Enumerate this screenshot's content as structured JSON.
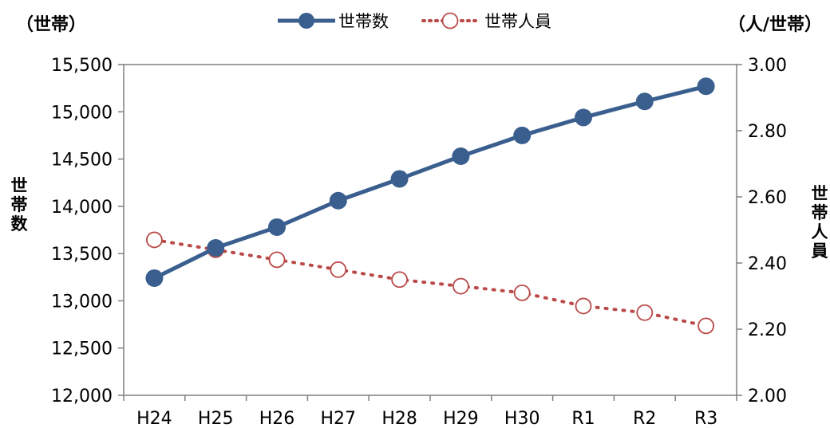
{
  "chart_data": {
    "type": "line",
    "categories": [
      "H24",
      "H25",
      "H26",
      "H27",
      "H28",
      "H29",
      "H30",
      "R1",
      "R2",
      "R3"
    ],
    "series": [
      {
        "name": "世帯数",
        "axis": "left",
        "style": "solid-line-filled-circle",
        "color": "#3a5f8f",
        "values": [
          13240,
          13560,
          13780,
          14060,
          14290,
          14530,
          14750,
          14940,
          15110,
          15270
        ]
      },
      {
        "name": "世帯人員",
        "axis": "right",
        "style": "dotted-line-open-circle",
        "color": "#b94a48",
        "values": [
          2.47,
          2.44,
          2.41,
          2.38,
          2.35,
          2.33,
          2.31,
          2.27,
          2.25,
          2.21
        ]
      }
    ],
    "y_left": {
      "unit_label": "（世帯）",
      "title": "世帯数",
      "ylim": [
        12000,
        15500
      ],
      "ticks": [
        12000,
        12500,
        13000,
        13500,
        14000,
        14500,
        15000,
        15500
      ],
      "tick_labels": [
        "12,000",
        "12,500",
        "13,000",
        "13,500",
        "14,000",
        "14,500",
        "15,000",
        "15,500"
      ]
    },
    "y_right": {
      "unit_label": "（人/世帯）",
      "title": "世帯人員",
      "ylim": [
        2.0,
        3.0
      ],
      "ticks": [
        2.0,
        2.2,
        2.4,
        2.6,
        2.8,
        3.0
      ],
      "tick_labels": [
        "2.00",
        "2.20",
        "2.40",
        "2.60",
        "2.80",
        "3.00"
      ]
    },
    "grid": false,
    "legend_position": "top-center"
  }
}
